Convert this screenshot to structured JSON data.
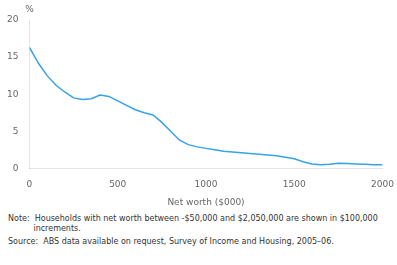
{
  "chart_data": {
    "type": "line",
    "x": [
      0,
      50,
      100,
      150,
      200,
      250,
      300,
      350,
      400,
      450,
      500,
      550,
      600,
      650,
      700,
      750,
      800,
      850,
      900,
      950,
      1000,
      1050,
      1100,
      1150,
      1200,
      1250,
      1300,
      1350,
      1400,
      1450,
      1500,
      1550,
      1600,
      1650,
      1700,
      1750,
      1800,
      1850,
      1900,
      1950,
      2000
    ],
    "values": [
      16.3,
      14.2,
      12.5,
      11.2,
      10.3,
      9.5,
      9.3,
      9.4,
      9.9,
      9.7,
      9.1,
      8.5,
      7.9,
      7.5,
      7.2,
      6.2,
      5.0,
      3.8,
      3.2,
      2.9,
      2.7,
      2.5,
      2.3,
      2.2,
      2.1,
      2.0,
      1.9,
      1.8,
      1.7,
      1.5,
      1.3,
      0.9,
      0.6,
      0.5,
      0.55,
      0.7,
      0.65,
      0.6,
      0.55,
      0.5,
      0.5
    ],
    "xlabel": "Net worth ($000)",
    "ylabel": "%",
    "xlim": [
      0,
      2000
    ],
    "ylim": [
      0,
      20
    ],
    "xticks": [
      0,
      500,
      1000,
      1500,
      2000
    ],
    "yticks": [
      0,
      5,
      10,
      15,
      20
    ],
    "grid": false,
    "annotations": [
      "Note:  Households with net worth between -$50,000 and $2,050,000 are shown in $100,000\n          increments.",
      "Source:  ABS data available on request, Survey of Income and Housing, 2005–06."
    ]
  }
}
